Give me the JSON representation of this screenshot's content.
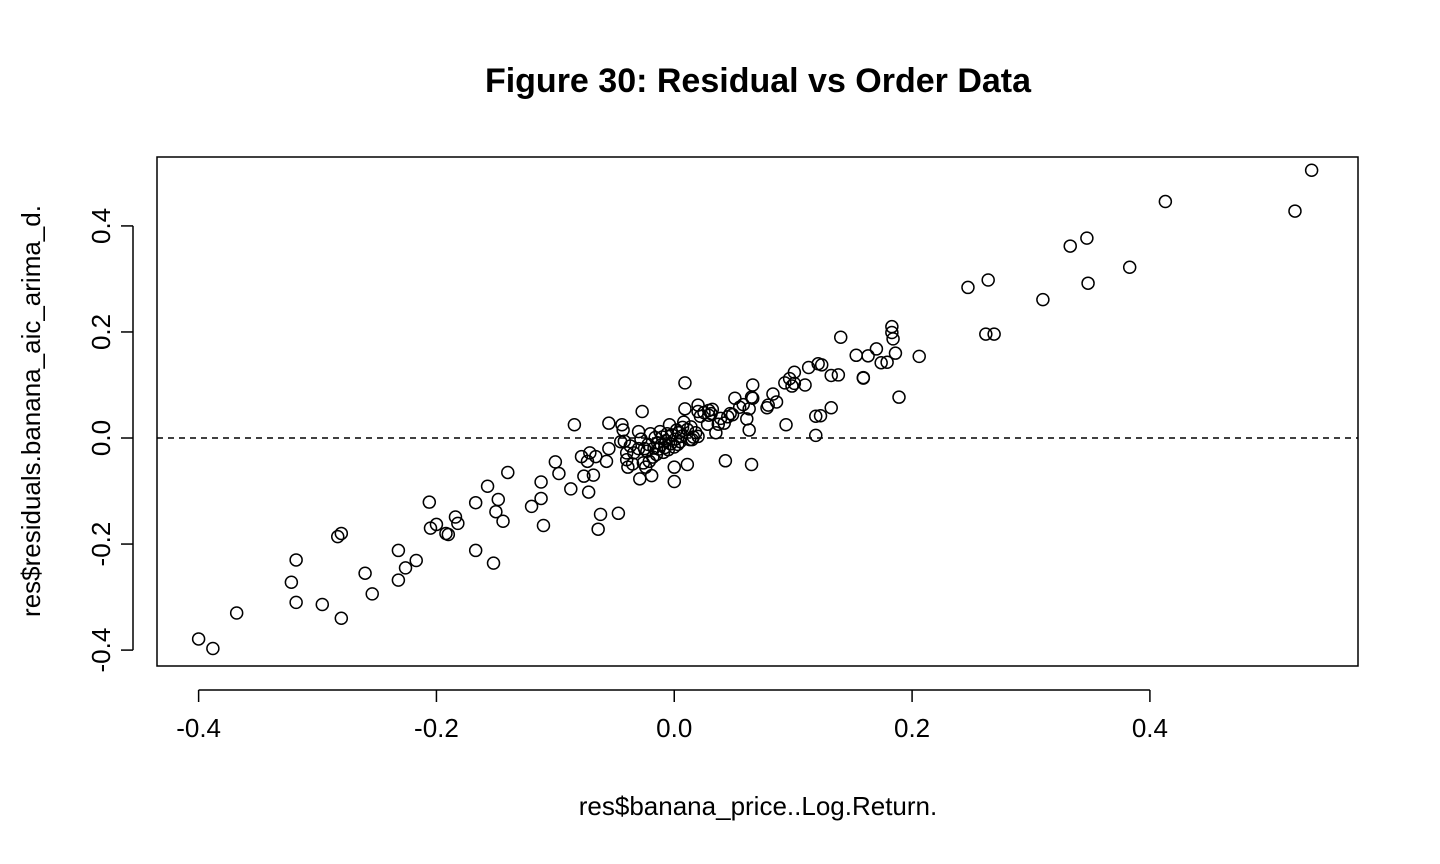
{
  "chart_data": {
    "type": "scatter",
    "title": "Figure 30: Residual vs Order Data",
    "xlabel": "res$banana_price..Log.Return.",
    "ylabel": "res$residuals.banana_aic_arima_d.",
    "xlim": [
      -0.435,
      0.575
    ],
    "ylim": [
      -0.43,
      0.53
    ],
    "xticks": [
      {
        "value": -0.4,
        "label": "-0.4"
      },
      {
        "value": -0.2,
        "label": "-0.2"
      },
      {
        "value": 0.0,
        "label": "0.0"
      },
      {
        "value": 0.2,
        "label": "0.2"
      },
      {
        "value": 0.4,
        "label": "0.4"
      }
    ],
    "yticks": [
      {
        "value": -0.4,
        "label": "-0.4"
      },
      {
        "value": -0.2,
        "label": "-0.2"
      },
      {
        "value": 0.0,
        "label": "0.0"
      },
      {
        "value": 0.2,
        "label": "0.2"
      },
      {
        "value": 0.4,
        "label": "0.4"
      }
    ],
    "reference_line": {
      "y": 0.0,
      "style": "dashed"
    },
    "grid": false,
    "marker": "open-circle",
    "points": [
      [
        0.536,
        0.505
      ],
      [
        0.522,
        0.428
      ],
      [
        0.413,
        0.446
      ],
      [
        0.383,
        0.322
      ],
      [
        0.347,
        0.377
      ],
      [
        0.348,
        0.292
      ],
      [
        0.333,
        0.362
      ],
      [
        0.31,
        0.261
      ],
      [
        0.269,
        0.196
      ],
      [
        0.264,
        0.298
      ],
      [
        0.262,
        0.196
      ],
      [
        0.247,
        0.284
      ],
      [
        0.206,
        0.154
      ],
      [
        0.189,
        0.077
      ],
      [
        0.186,
        0.16
      ],
      [
        0.183,
        0.21
      ],
      [
        0.183,
        0.199
      ],
      [
        0.184,
        0.187
      ],
      [
        0.179,
        0.143
      ],
      [
        0.174,
        0.142
      ],
      [
        0.17,
        0.168
      ],
      [
        0.163,
        0.155
      ],
      [
        0.159,
        0.114
      ],
      [
        0.159,
        0.113
      ],
      [
        0.153,
        0.156
      ],
      [
        0.14,
        0.19
      ],
      [
        0.138,
        0.119
      ],
      [
        0.132,
        0.118
      ],
      [
        0.132,
        0.057
      ],
      [
        0.124,
        0.138
      ],
      [
        0.121,
        0.14
      ],
      [
        0.123,
        0.042
      ],
      [
        0.119,
        0.041
      ],
      [
        0.119,
        0.005
      ],
      [
        0.113,
        0.133
      ],
      [
        0.11,
        0.1
      ],
      [
        0.101,
        0.103
      ],
      [
        0.101,
        0.124
      ],
      [
        0.099,
        0.098
      ],
      [
        0.097,
        0.112
      ],
      [
        0.093,
        0.104
      ],
      [
        0.094,
        0.025
      ],
      [
        0.086,
        0.068
      ],
      [
        0.083,
        0.083
      ],
      [
        0.079,
        0.062
      ],
      [
        0.078,
        0.057
      ],
      [
        0.066,
        0.1
      ],
      [
        0.066,
        0.075
      ],
      [
        0.065,
        0.077
      ],
      [
        0.063,
        0.055
      ],
      [
        0.061,
        0.036
      ],
      [
        0.063,
        0.015
      ],
      [
        0.065,
        -0.05
      ],
      [
        0.058,
        0.063
      ],
      [
        0.055,
        0.058
      ],
      [
        0.051,
        0.075
      ],
      [
        0.049,
        0.044
      ],
      [
        0.047,
        0.046
      ],
      [
        0.045,
        0.04
      ],
      [
        0.042,
        0.028
      ],
      [
        0.043,
        -0.043
      ],
      [
        0.039,
        0.037
      ],
      [
        0.037,
        0.026
      ],
      [
        0.035,
        0.01
      ],
      [
        0.032,
        0.054
      ],
      [
        0.031,
        0.046
      ],
      [
        0.029,
        0.052
      ],
      [
        0.029,
        0.043
      ],
      [
        0.028,
        0.026
      ],
      [
        0.025,
        0.048
      ],
      [
        0.022,
        0.041
      ],
      [
        0.02,
        0.062
      ],
      [
        0.02,
        0.05
      ],
      [
        0.02,
        0.003
      ],
      [
        0.018,
        0.01
      ],
      [
        0.016,
        0.002
      ],
      [
        0.015,
        -0.003
      ],
      [
        0.014,
        0.021
      ],
      [
        0.013,
        -0.003
      ],
      [
        0.011,
        0.016
      ],
      [
        0.011,
        -0.05
      ],
      [
        0.009,
        0.104
      ],
      [
        0.009,
        0.055
      ],
      [
        0.008,
        0.03
      ],
      [
        0.007,
        0.02
      ],
      [
        0.006,
        0.003
      ],
      [
        0.005,
        -0.007
      ],
      [
        0.004,
        0.01
      ],
      [
        0.003,
        -0.012
      ],
      [
        0.002,
        0.015
      ],
      [
        0.001,
        -0.002
      ],
      [
        0.0,
        -0.017
      ],
      [
        0.0,
        -0.055
      ],
      [
        0.0,
        -0.082
      ],
      [
        -0.002,
        0.006
      ],
      [
        -0.003,
        -0.011
      ],
      [
        -0.004,
        0.025
      ],
      [
        -0.005,
        -0.022
      ],
      [
        -0.006,
        0.008
      ],
      [
        -0.007,
        -0.005
      ],
      [
        -0.008,
        -0.018
      ],
      [
        -0.009,
        -0.027
      ],
      [
        -0.01,
        0.002
      ],
      [
        -0.011,
        -0.013
      ],
      [
        -0.012,
        0.012
      ],
      [
        -0.013,
        -0.021
      ],
      [
        -0.014,
        -0.009
      ],
      [
        -0.015,
        -0.031
      ],
      [
        -0.016,
        0.001
      ],
      [
        -0.017,
        -0.019
      ],
      [
        -0.018,
        -0.036
      ],
      [
        -0.019,
        -0.071
      ],
      [
        -0.02,
        0.008
      ],
      [
        -0.021,
        -0.044
      ],
      [
        -0.022,
        -0.012
      ],
      [
        -0.023,
        -0.025
      ],
      [
        -0.024,
        -0.055
      ],
      [
        -0.025,
        -0.02
      ],
      [
        -0.026,
        -0.047
      ],
      [
        -0.027,
        0.05
      ],
      [
        -0.028,
        -0.002
      ],
      [
        -0.029,
        -0.077
      ],
      [
        -0.03,
        -0.02
      ],
      [
        -0.03,
        0.012
      ],
      [
        -0.034,
        -0.028
      ],
      [
        -0.035,
        -0.049
      ],
      [
        -0.037,
        -0.015
      ],
      [
        -0.039,
        -0.055
      ],
      [
        -0.04,
        -0.041
      ],
      [
        -0.04,
        -0.028
      ],
      [
        -0.042,
        -0.006
      ],
      [
        -0.043,
        0.015
      ],
      [
        -0.044,
        0.025
      ],
      [
        -0.045,
        -0.007
      ],
      [
        -0.047,
        -0.142
      ],
      [
        -0.055,
        0.028
      ],
      [
        -0.055,
        -0.02
      ],
      [
        -0.057,
        -0.044
      ],
      [
        -0.062,
        -0.144
      ],
      [
        -0.064,
        -0.172
      ],
      [
        -0.066,
        -0.035
      ],
      [
        -0.068,
        -0.07
      ],
      [
        -0.071,
        -0.028
      ],
      [
        -0.072,
        -0.102
      ],
      [
        -0.073,
        -0.044
      ],
      [
        -0.076,
        -0.072
      ],
      [
        -0.078,
        -0.035
      ],
      [
        -0.084,
        0.025
      ],
      [
        -0.087,
        -0.096
      ],
      [
        -0.097,
        -0.067
      ],
      [
        -0.1,
        -0.045
      ],
      [
        -0.11,
        -0.165
      ],
      [
        -0.112,
        -0.083
      ],
      [
        -0.112,
        -0.114
      ],
      [
        -0.12,
        -0.129
      ],
      [
        -0.14,
        -0.065
      ],
      [
        -0.144,
        -0.157
      ],
      [
        -0.148,
        -0.116
      ],
      [
        -0.15,
        -0.139
      ],
      [
        -0.152,
        -0.236
      ],
      [
        -0.157,
        -0.091
      ],
      [
        -0.167,
        -0.122
      ],
      [
        -0.167,
        -0.212
      ],
      [
        -0.182,
        -0.161
      ],
      [
        -0.184,
        -0.149
      ],
      [
        -0.19,
        -0.182
      ],
      [
        -0.192,
        -0.18
      ],
      [
        -0.2,
        -0.163
      ],
      [
        -0.205,
        -0.17
      ],
      [
        -0.206,
        -0.121
      ],
      [
        -0.217,
        -0.231
      ],
      [
        -0.226,
        -0.245
      ],
      [
        -0.232,
        -0.268
      ],
      [
        -0.232,
        -0.212
      ],
      [
        -0.26,
        -0.255
      ],
      [
        -0.254,
        -0.294
      ],
      [
        -0.28,
        -0.18
      ],
      [
        -0.283,
        -0.186
      ],
      [
        -0.28,
        -0.34
      ],
      [
        -0.296,
        -0.314
      ],
      [
        -0.318,
        -0.31
      ],
      [
        -0.318,
        -0.23
      ],
      [
        -0.322,
        -0.272
      ],
      [
        -0.368,
        -0.33
      ],
      [
        -0.388,
        -0.397
      ],
      [
        -0.4,
        -0.379
      ]
    ]
  }
}
